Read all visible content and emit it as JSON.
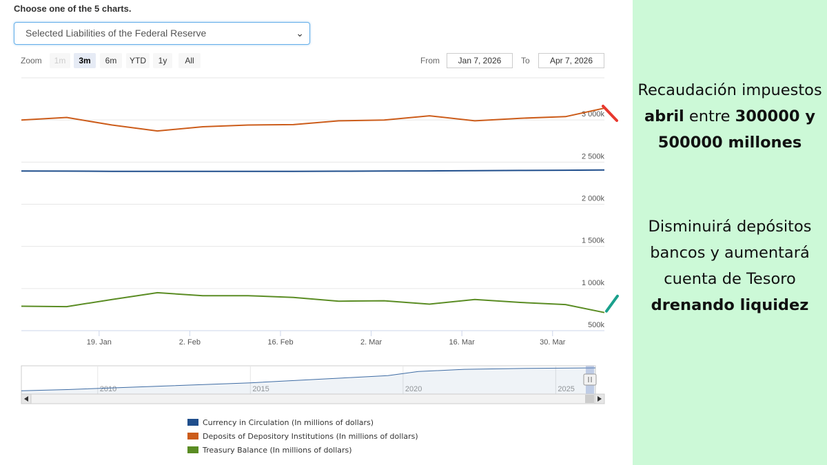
{
  "heading": "Choose one of the 5 charts.",
  "select": {
    "value": "Selected Liabilities of the Federal Reserve"
  },
  "zoom": {
    "label": "Zoom",
    "buttons": [
      "1m",
      "3m",
      "6m",
      "YTD",
      "1y",
      "All"
    ],
    "active": "3m",
    "disabled": [
      "1m"
    ]
  },
  "range": {
    "from_label": "From",
    "from": "Jan 7, 2026",
    "to_label": "To",
    "to": "Apr 7, 2026"
  },
  "chart_data": {
    "type": "line",
    "x": [
      "2026-01-07",
      "2026-01-14",
      "2026-01-21",
      "2026-01-28",
      "2026-02-04",
      "2026-02-11",
      "2026-02-18",
      "2026-02-25",
      "2026-03-04",
      "2026-03-11",
      "2026-03-18",
      "2026-03-25",
      "2026-04-01",
      "2026-04-07"
    ],
    "series": [
      {
        "name": "Currency in Circulation (In millions of dollars)",
        "color": "#1f4e8c",
        "values": [
          2395000,
          2393000,
          2391000,
          2390000,
          2390000,
          2390000,
          2391000,
          2392000,
          2394000,
          2396000,
          2398000,
          2401000,
          2404000,
          2406000
        ]
      },
      {
        "name": "Deposits of Depository Institutions (In millions of dollars)",
        "color": "#cc5c1a",
        "values": [
          3000000,
          3030000,
          2940000,
          2870000,
          2920000,
          2940000,
          2945000,
          2990000,
          3000000,
          3050000,
          2990000,
          3020000,
          3040000,
          3140000
        ]
      },
      {
        "name": "Treasury Balance (In millions of dollars)",
        "color": "#5a8c23",
        "values": [
          790000,
          785000,
          870000,
          950000,
          915000,
          915000,
          895000,
          850000,
          855000,
          815000,
          870000,
          835000,
          810000,
          715000
        ]
      }
    ],
    "ylim": [
      500000,
      3500000
    ],
    "yticks": [
      {
        "value": 500000,
        "label": "500k"
      },
      {
        "value": 1000000,
        "label": "1 000k"
      },
      {
        "value": 1500000,
        "label": "1 500k"
      },
      {
        "value": 2000000,
        "label": "2 000k"
      },
      {
        "value": 2500000,
        "label": "2 500k"
      },
      {
        "value": 3000000,
        "label": "3 000k"
      }
    ],
    "xticks": [
      {
        "date": "2026-01-19",
        "label": "19. Jan"
      },
      {
        "date": "2026-02-02",
        "label": "2. Feb"
      },
      {
        "date": "2026-02-16",
        "label": "16. Feb"
      },
      {
        "date": "2026-03-02",
        "label": "2. Mar"
      },
      {
        "date": "2026-03-16",
        "label": "16. Mar"
      },
      {
        "date": "2026-03-30",
        "label": "30. Mar"
      }
    ],
    "grid": true,
    "legend_position": "bottom",
    "annotations": [
      {
        "series": "Deposits of Depository Institutions (In millions of dollars)",
        "direction": "down",
        "color": "#e8382e"
      },
      {
        "series": "Treasury Balance (In millions of dollars)",
        "direction": "up",
        "color": "#1aa08c"
      }
    ],
    "navigator": {
      "year_labels": [
        "2010",
        "2015",
        "2020",
        "2025"
      ],
      "years": [
        2010,
        2015,
        2020,
        2025
      ],
      "start_year": 2007.5,
      "end_year": 2026.3,
      "series": [
        {
          "year": 2007.5,
          "value": 0.05
        },
        {
          "year": 2009,
          "value": 0.1
        },
        {
          "year": 2012,
          "value": 0.24
        },
        {
          "year": 2015,
          "value": 0.38
        },
        {
          "year": 2018,
          "value": 0.58
        },
        {
          "year": 2019.5,
          "value": 0.68
        },
        {
          "year": 2020.5,
          "value": 0.85
        },
        {
          "year": 2022,
          "value": 0.94
        },
        {
          "year": 2024,
          "value": 0.98
        },
        {
          "year": 2026.3,
          "value": 1.0
        }
      ]
    }
  },
  "note": {
    "p1": {
      "t1": "Recaudación impuestos ",
      "b1": "abril",
      "t2": " entre ",
      "b2": "300000 y 500000 millones"
    },
    "p2": {
      "t1": "Disminuirá depósitos bancos y aumentará cuenta de Tesoro ",
      "b1": "drenando liquidez"
    }
  }
}
